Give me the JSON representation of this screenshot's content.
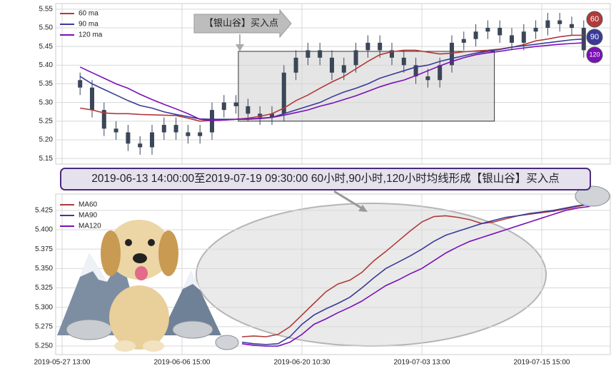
{
  "chart_data": [
    {
      "type": "candlestick",
      "annotation": "【银山谷】买入点",
      "xlim": [
        -1.07,
        91.43
      ],
      "x": [
        3,
        5,
        7,
        9,
        11,
        13,
        15,
        17,
        19,
        21,
        23,
        25,
        27,
        29,
        31,
        33,
        35,
        37,
        39,
        41,
        43,
        45,
        47,
        49,
        51,
        53,
        55,
        57,
        59,
        61,
        63,
        65,
        67,
        69,
        71,
        73,
        75,
        77,
        79,
        81,
        83,
        85,
        87
      ],
      "open": [
        5.36,
        5.34,
        5.28,
        5.23,
        5.22,
        5.19,
        5.18,
        5.22,
        5.24,
        5.22,
        5.21,
        5.22,
        5.28,
        5.3,
        5.29,
        5.27,
        5.26,
        5.27,
        5.38,
        5.42,
        5.44,
        5.42,
        5.38,
        5.4,
        5.44,
        5.46,
        5.44,
        5.42,
        5.4,
        5.37,
        5.36,
        5.4,
        5.46,
        5.47,
        5.49,
        5.5,
        5.48,
        5.46,
        5.49,
        5.5,
        5.52,
        5.51,
        5.5
      ],
      "high": [
        5.38,
        5.36,
        5.3,
        5.25,
        5.24,
        5.21,
        5.24,
        5.26,
        5.26,
        5.24,
        5.24,
        5.3,
        5.32,
        5.32,
        5.31,
        5.29,
        5.29,
        5.4,
        5.44,
        5.46,
        5.46,
        5.44,
        5.42,
        5.46,
        5.48,
        5.48,
        5.46,
        5.44,
        5.42,
        5.39,
        5.42,
        5.48,
        5.49,
        5.51,
        5.52,
        5.52,
        5.5,
        5.51,
        5.52,
        5.54,
        5.54,
        5.53,
        5.52
      ],
      "low": [
        5.32,
        5.26,
        5.21,
        5.2,
        5.17,
        5.16,
        5.16,
        5.2,
        5.2,
        5.19,
        5.19,
        5.2,
        5.26,
        5.27,
        5.25,
        5.24,
        5.24,
        5.25,
        5.36,
        5.4,
        5.4,
        5.36,
        5.36,
        5.38,
        5.42,
        5.42,
        5.4,
        5.38,
        5.35,
        5.34,
        5.34,
        5.38,
        5.44,
        5.45,
        5.47,
        5.46,
        5.44,
        5.44,
        5.47,
        5.48,
        5.49,
        5.48,
        5.42
      ],
      "close": [
        5.34,
        5.28,
        5.23,
        5.22,
        5.19,
        5.18,
        5.22,
        5.24,
        5.22,
        5.21,
        5.22,
        5.28,
        5.3,
        5.29,
        5.27,
        5.26,
        5.27,
        5.38,
        5.42,
        5.44,
        5.42,
        5.38,
        5.4,
        5.44,
        5.46,
        5.44,
        5.42,
        5.4,
        5.37,
        5.36,
        5.4,
        5.46,
        5.47,
        5.49,
        5.5,
        5.48,
        5.46,
        5.49,
        5.5,
        5.52,
        5.51,
        5.5,
        5.44
      ],
      "candle_color": "#3b4658",
      "series": [
        {
          "name": "60 ma",
          "color": "#b03a3a",
          "values": [
            5.285,
            5.28,
            5.272,
            5.27,
            5.27,
            5.268,
            5.267,
            5.266,
            5.265,
            5.258,
            5.25,
            5.252,
            5.253,
            5.255,
            5.258,
            5.263,
            5.27,
            5.285,
            5.305,
            5.32,
            5.338,
            5.355,
            5.37,
            5.39,
            5.41,
            5.428,
            5.436,
            5.44,
            5.44,
            5.435,
            5.43,
            5.432,
            5.436,
            5.438,
            5.44,
            5.443,
            5.448,
            5.455,
            5.465,
            5.47,
            5.476,
            5.48,
            5.48
          ]
        },
        {
          "name": "90 ma",
          "color": "#3a3a9a",
          "values": [
            5.37,
            5.35,
            5.335,
            5.32,
            5.305,
            5.292,
            5.285,
            5.275,
            5.268,
            5.262,
            5.256,
            5.255,
            5.255,
            5.255,
            5.255,
            5.257,
            5.26,
            5.27,
            5.28,
            5.29,
            5.3,
            5.315,
            5.328,
            5.338,
            5.35,
            5.365,
            5.375,
            5.385,
            5.395,
            5.4,
            5.41,
            5.418,
            5.425,
            5.432,
            5.437,
            5.442,
            5.448,
            5.452,
            5.456,
            5.46,
            5.464,
            5.468,
            5.47
          ]
        },
        {
          "name": "120 ma",
          "color": "#7a10b8",
          "values": [
            5.395,
            5.38,
            5.365,
            5.35,
            5.338,
            5.322,
            5.308,
            5.295,
            5.283,
            5.27,
            5.255,
            5.252,
            5.253,
            5.255,
            5.256,
            5.258,
            5.26,
            5.266,
            5.273,
            5.28,
            5.29,
            5.298,
            5.308,
            5.318,
            5.33,
            5.342,
            5.352,
            5.36,
            5.372,
            5.385,
            5.398,
            5.41,
            5.42,
            5.428,
            5.433,
            5.437,
            5.442,
            5.446,
            5.45,
            5.453,
            5.456,
            5.458,
            5.46
          ]
        }
      ],
      "pattern_box": {
        "x": [
          29.4,
          72.1
        ],
        "y": [
          5.25,
          5.437
        ]
      },
      "badges": [
        60,
        90,
        120
      ],
      "ylim": [
        5.135,
        5.565
      ],
      "yticks": [
        5.15,
        {
          "value": 5.2,
          "label": "5.20"
        },
        5.25,
        {
          "value": 5.3,
          "label": "5.30"
        },
        5.35,
        {
          "value": 5.4,
          "label": "5.40"
        },
        5.45,
        {
          "value": 5.5,
          "label": "5.50"
        },
        5.55
      ],
      "grid": true
    },
    {
      "type": "line",
      "title": "2019-06-13 14:00:00至2019-07-19 09:30:00 60小时,90小时,120小时均线形成【银山谷】买入点",
      "xlim": [
        -1.07,
        91.43
      ],
      "x": [
        30,
        32,
        34,
        36,
        38,
        40,
        42,
        44,
        46,
        48,
        50,
        52,
        54,
        56,
        58,
        60,
        62,
        64,
        66,
        68,
        70,
        72,
        74,
        76,
        78,
        80,
        82,
        84,
        86,
        88
      ],
      "series": [
        {
          "name": "MA60",
          "color": "#b03a3a",
          "values": [
            5.262,
            5.263,
            5.262,
            5.265,
            5.275,
            5.29,
            5.305,
            5.32,
            5.33,
            5.335,
            5.345,
            5.36,
            5.372,
            5.385,
            5.398,
            5.41,
            5.417,
            5.418,
            5.416,
            5.413,
            5.408,
            5.41,
            5.414,
            5.418,
            5.42,
            5.422,
            5.424,
            5.427,
            5.43,
            5.433
          ]
        },
        {
          "name": "MA90",
          "color": "#3a3a9a",
          "values": [
            5.255,
            5.253,
            5.252,
            5.253,
            5.262,
            5.278,
            5.29,
            5.298,
            5.305,
            5.313,
            5.325,
            5.338,
            5.35,
            5.358,
            5.366,
            5.375,
            5.385,
            5.393,
            5.398,
            5.403,
            5.408,
            5.412,
            5.416,
            5.418,
            5.421,
            5.423,
            5.425,
            5.428,
            5.431,
            5.433
          ]
        },
        {
          "name": "MA120",
          "color": "#7a10b8",
          "values": [
            5.253,
            5.251,
            5.25,
            5.25,
            5.255,
            5.265,
            5.278,
            5.285,
            5.293,
            5.3,
            5.308,
            5.318,
            5.328,
            5.335,
            5.343,
            5.35,
            5.36,
            5.37,
            5.378,
            5.385,
            5.39,
            5.395,
            5.4,
            5.405,
            5.41,
            5.415,
            5.42,
            5.425,
            5.428,
            5.43
          ]
        }
      ],
      "ylim": [
        5.239,
        5.446
      ],
      "yticks": [
        {
          "value": 5.25,
          "label": "5.250"
        },
        5.275,
        {
          "value": 5.3,
          "label": "5.300"
        },
        5.325,
        {
          "value": 5.35,
          "label": "5.350"
        },
        5.375,
        {
          "value": 5.4,
          "label": "5.400"
        },
        5.425
      ],
      "xticks": [
        {
          "value": 0,
          "label": "2019-05-27 13:00"
        },
        {
          "value": 20,
          "label": "2019-06-06 15:00"
        },
        {
          "value": 40,
          "label": "2019-06-20 10:30"
        },
        {
          "value": 60,
          "label": "2019-07-03 13:00"
        },
        {
          "value": 80,
          "label": "2019-07-15 15:00"
        }
      ],
      "grid": true
    }
  ]
}
